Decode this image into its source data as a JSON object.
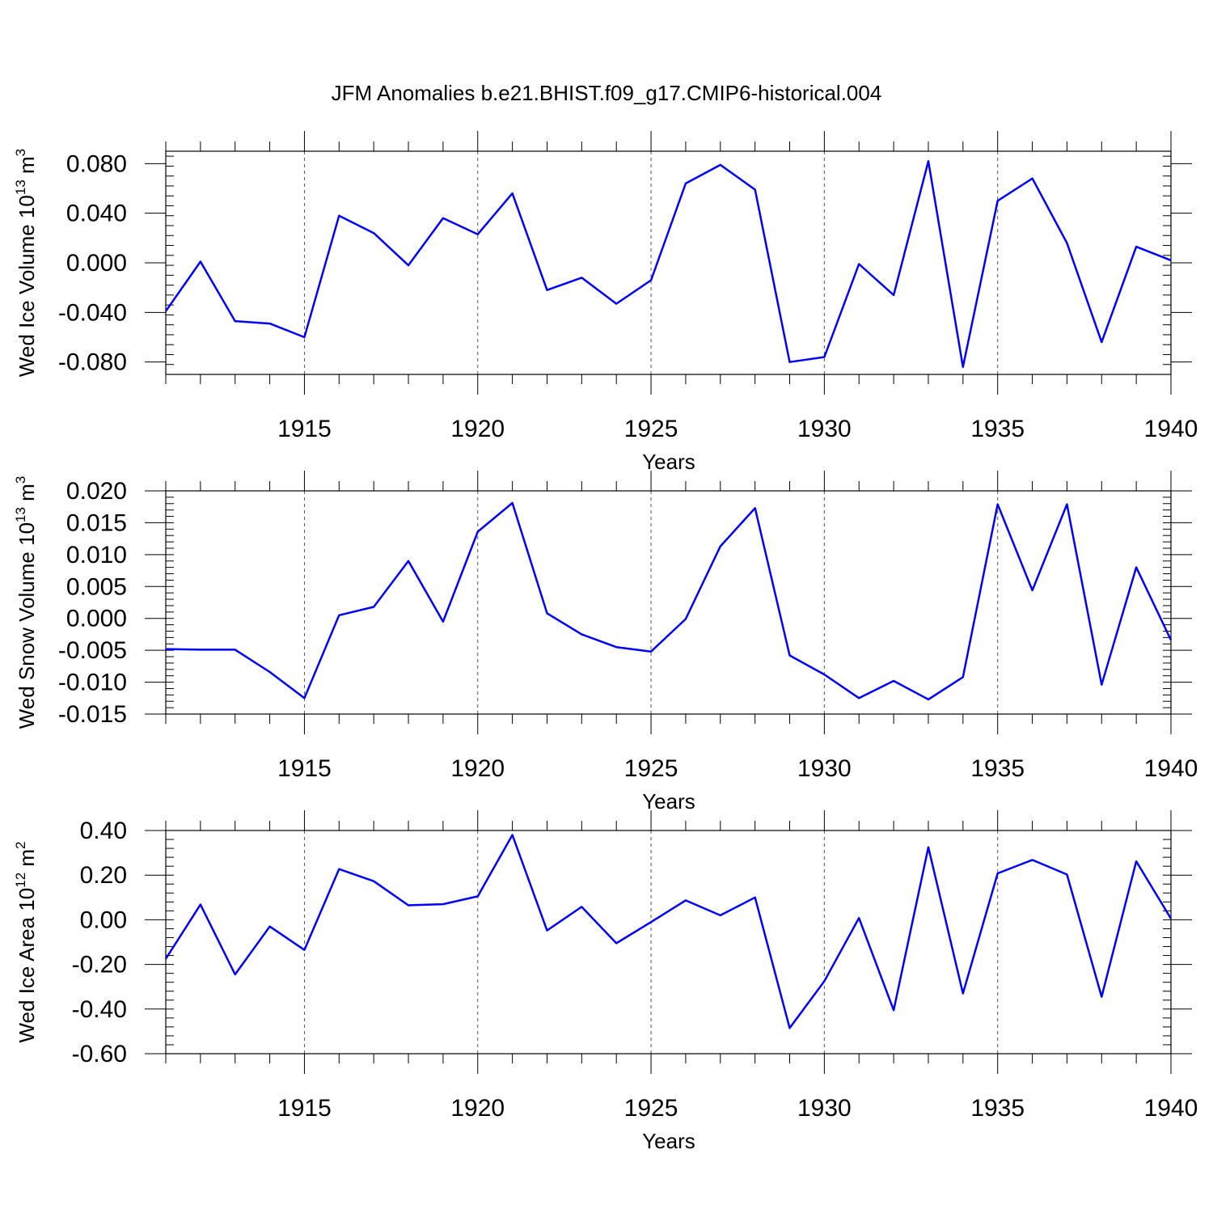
{
  "title": "JFM Anomalies b.e21.BHIST.f09_g17.CMIP6-historical.004",
  "line_color": "#0000ff",
  "chart_data": [
    {
      "type": "line",
      "ylabel": {
        "main": "Wed Ice Volume 10",
        "sup": "13",
        "unit": " m",
        "unit_sup": "3"
      },
      "xlabel": "Years",
      "xlim": [
        1911,
        1940
      ],
      "ylim": [
        -0.09,
        0.09
      ],
      "yticks": [
        -0.08,
        -0.04,
        0.0,
        0.04,
        0.08
      ],
      "ytick_labels": [
        "-0.080",
        "-0.040",
        "0.000",
        "0.040",
        "0.080"
      ],
      "xticks": [
        1915,
        1920,
        1925,
        1930,
        1935,
        1940
      ],
      "xtick_labels": [
        "1915",
        "1920",
        "1925",
        "1930",
        "1935",
        "1940"
      ],
      "grid": "dashed vertical at major x ticks",
      "x": [
        1911,
        1912,
        1913,
        1914,
        1915,
        1916,
        1917,
        1918,
        1919,
        1920,
        1921,
        1922,
        1923,
        1924,
        1925,
        1926,
        1927,
        1928,
        1929,
        1930,
        1931,
        1932,
        1933,
        1934,
        1935,
        1936,
        1937,
        1938,
        1939,
        1940
      ],
      "y": [
        -0.039,
        0.001,
        -0.047,
        -0.049,
        -0.06,
        0.038,
        0.024,
        -0.002,
        0.036,
        0.023,
        0.056,
        -0.022,
        -0.012,
        -0.033,
        -0.014,
        0.064,
        0.079,
        0.059,
        -0.08,
        -0.076,
        -0.001,
        -0.026,
        0.082,
        -0.084,
        0.05,
        0.068,
        0.016,
        -0.064,
        0.013,
        0.002
      ]
    },
    {
      "type": "line",
      "ylabel": {
        "main": "Wed Snow Volume 10",
        "sup": "13",
        "unit": " m",
        "unit_sup": "3"
      },
      "xlabel": "Years",
      "xlim": [
        1911,
        1940
      ],
      "ylim": [
        -0.015,
        0.02
      ],
      "yticks": [
        -0.015,
        -0.01,
        -0.005,
        0.0,
        0.005,
        0.01,
        0.015,
        0.02
      ],
      "ytick_labels": [
        "-0.015",
        "-0.010",
        "-0.005",
        "0.000",
        "0.005",
        "0.010",
        "0.015",
        "0.020"
      ],
      "xticks": [
        1915,
        1920,
        1925,
        1930,
        1935,
        1940
      ],
      "xtick_labels": [
        "1915",
        "1920",
        "1925",
        "1930",
        "1935",
        "1940"
      ],
      "grid": "dashed vertical at major x ticks",
      "x": [
        1911,
        1912,
        1913,
        1914,
        1915,
        1916,
        1917,
        1918,
        1919,
        1920,
        1921,
        1922,
        1923,
        1924,
        1925,
        1926,
        1927,
        1928,
        1929,
        1930,
        1931,
        1932,
        1933,
        1934,
        1935,
        1936,
        1937,
        1938,
        1939,
        1940
      ],
      "y": [
        -0.0048,
        -0.0049,
        -0.0049,
        -0.0084,
        -0.0125,
        0.0005,
        0.0018,
        0.009,
        -0.0005,
        0.0136,
        0.0181,
        0.0008,
        -0.0025,
        -0.0045,
        -0.0052,
        -0.0001,
        0.0113,
        0.0173,
        -0.0058,
        -0.0088,
        -0.0125,
        -0.0098,
        -0.0127,
        -0.0092,
        0.0179,
        0.0044,
        0.0179,
        -0.0104,
        0.008,
        -0.0034
      ]
    },
    {
      "type": "line",
      "ylabel": {
        "main": "Wed Ice Area 10",
        "sup": "12",
        "unit": " m",
        "unit_sup": "2"
      },
      "xlabel": "Years",
      "xlim": [
        1911,
        1940
      ],
      "ylim": [
        -0.6,
        0.4
      ],
      "yticks": [
        -0.6,
        -0.4,
        -0.2,
        0.0,
        0.2,
        0.4
      ],
      "ytick_labels": [
        "-0.60",
        "-0.40",
        "-0.20",
        "0.00",
        "0.20",
        "0.40"
      ],
      "xticks": [
        1915,
        1920,
        1925,
        1930,
        1935,
        1940
      ],
      "xtick_labels": [
        "1915",
        "1920",
        "1925",
        "1930",
        "1935",
        "1940"
      ],
      "grid": "dashed vertical at major x ticks",
      "x": [
        1911,
        1912,
        1913,
        1914,
        1915,
        1916,
        1917,
        1918,
        1919,
        1920,
        1921,
        1922,
        1923,
        1924,
        1925,
        1926,
        1927,
        1928,
        1929,
        1930,
        1931,
        1932,
        1933,
        1934,
        1935,
        1936,
        1937,
        1938,
        1939,
        1940
      ],
      "y": [
        -0.175,
        0.068,
        -0.245,
        -0.03,
        -0.135,
        0.227,
        0.173,
        0.065,
        0.07,
        0.105,
        0.38,
        -0.048,
        0.058,
        -0.105,
        -0.01,
        0.087,
        0.02,
        0.1,
        -0.485,
        -0.275,
        0.008,
        -0.405,
        0.325,
        -0.33,
        0.208,
        0.268,
        0.203,
        -0.345,
        0.262,
        0.005
      ]
    }
  ]
}
